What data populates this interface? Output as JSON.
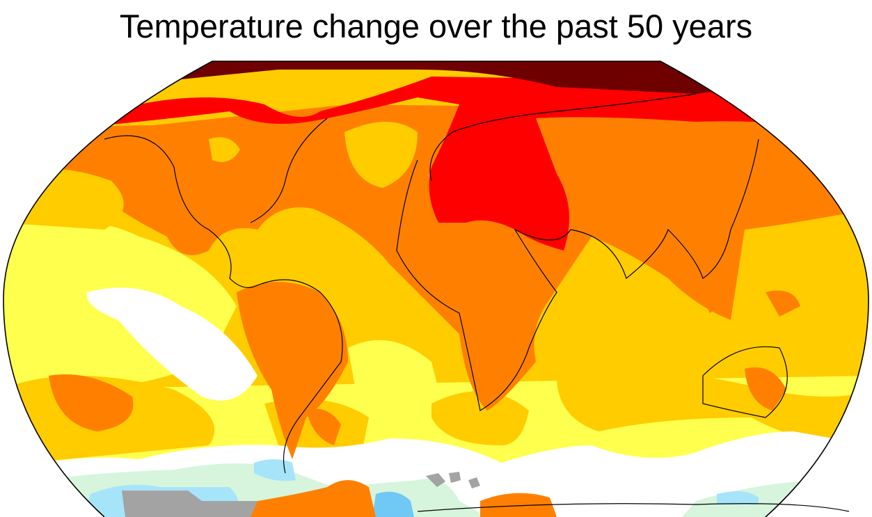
{
  "title": "Temperature change over the past 50 years",
  "palette": {
    "strongest_warming": "#6e0000",
    "strong_warming": "#ff0000",
    "warming": "#ff8000",
    "moderate_warming": "#ffcc00",
    "slight_warming": "#ffff4d",
    "no_change": "#ffffff",
    "slight_cooling": "#d6f5dc",
    "cooling": "#a6e4fa",
    "strong_cooling": "#70c8f5",
    "no_data": "#a3a3a3",
    "coastline": "#000000"
  }
}
